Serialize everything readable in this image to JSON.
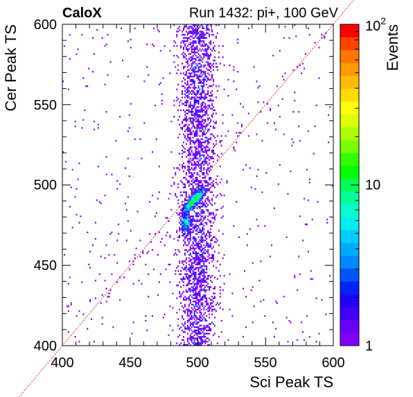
{
  "chart_data": {
    "type": "heatmap",
    "title_left": "CaloX",
    "title_right": "Run 1432: pi+, 100 GeV",
    "xlabel": "Sci Peak TS",
    "ylabel": "Cer Peak TS",
    "zlabel": "Events",
    "xlim": [
      400,
      600
    ],
    "ylim": [
      400,
      600
    ],
    "zlim": [
      1,
      100
    ],
    "zscale": "log",
    "xticks": [
      "400",
      "450",
      "500",
      "550",
      "600"
    ],
    "yticks": [
      "400",
      "450",
      "500",
      "550",
      "600"
    ],
    "zticks": [
      "1",
      "10",
      "10"
    ],
    "zticks_exp": [
      "",
      "",
      "2"
    ],
    "bin_width": 1,
    "diagonal_line": {
      "from": [
        400,
        400
      ],
      "to": [
        600,
        600
      ],
      "color": "#e02020",
      "style": "dotted"
    },
    "core_x_range": [
      485,
      515
    ],
    "hotspot": {
      "x": 497,
      "y": 490,
      "peak_events": 12
    },
    "palette": [
      "#8000ff",
      "#6600ff",
      "#4400ff",
      "#2200ff",
      "#0022ff",
      "#0055ff",
      "#0088ff",
      "#00aaff",
      "#00ccff",
      "#00eeee",
      "#00ffcc",
      "#00ff99",
      "#00ff55",
      "#00ff00",
      "#33ff00",
      "#77ff00",
      "#aaff00",
      "#ddff00",
      "#ffff00",
      "#ffdd00",
      "#ffbb00",
      "#ff9900",
      "#ff7700",
      "#ff4400",
      "#ff0000"
    ]
  }
}
